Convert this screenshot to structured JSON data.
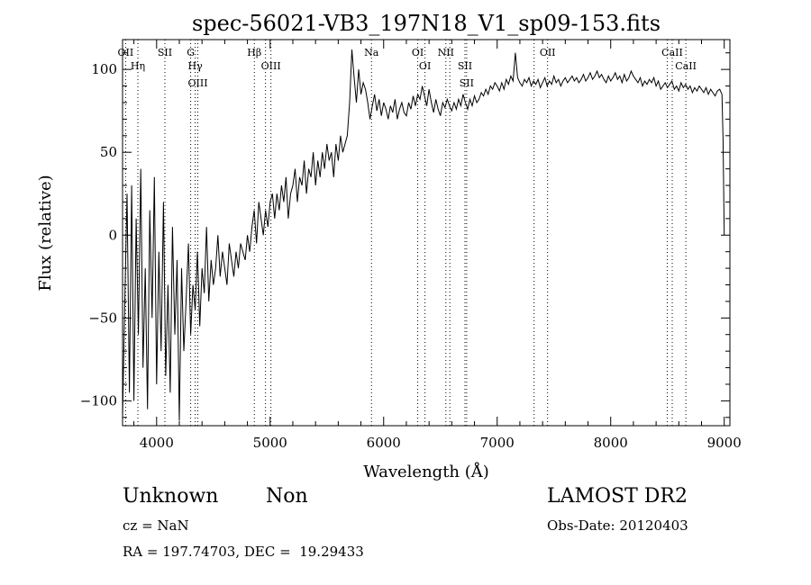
{
  "chart_data": {
    "type": "line",
    "title": "spec-56021-VB3_197N18_V1_sp09-153.fits",
    "xlabel": "Wavelength (Å)",
    "ylabel": "Flux (relative)",
    "xlim": [
      3700,
      9050
    ],
    "ylim": [
      -115,
      118
    ],
    "x_ticks": [
      4000,
      5000,
      6000,
      7000,
      8000,
      9000
    ],
    "y_ticks": [
      -100,
      -50,
      0,
      50,
      100
    ],
    "grid": false,
    "series": [
      {
        "color": "#000000",
        "x": [
          3700,
          3720,
          3740,
          3760,
          3780,
          3800,
          3820,
          3840,
          3860,
          3880,
          3900,
          3920,
          3940,
          3960,
          3980,
          4000,
          4020,
          4040,
          4060,
          4080,
          4100,
          4120,
          4140,
          4160,
          4180,
          4200,
          4220,
          4240,
          4260,
          4280,
          4300,
          4320,
          4340,
          4360,
          4380,
          4400,
          4420,
          4440,
          4460,
          4480,
          4500,
          4520,
          4540,
          4560,
          4580,
          4600,
          4620,
          4640,
          4660,
          4680,
          4700,
          4720,
          4740,
          4760,
          4780,
          4800,
          4820,
          4840,
          4860,
          4880,
          4900,
          4920,
          4940,
          4960,
          4980,
          5000,
          5020,
          5040,
          5060,
          5080,
          5100,
          5120,
          5140,
          5160,
          5180,
          5200,
          5220,
          5240,
          5260,
          5280,
          5300,
          5320,
          5340,
          5360,
          5380,
          5400,
          5420,
          5440,
          5460,
          5480,
          5500,
          5520,
          5540,
          5560,
          5580,
          5600,
          5620,
          5640,
          5660,
          5680,
          5700,
          5720,
          5740,
          5760,
          5780,
          5800,
          5820,
          5840,
          5860,
          5880,
          5900,
          5920,
          5940,
          5960,
          5980,
          6000,
          6020,
          6040,
          6060,
          6080,
          6100,
          6120,
          6140,
          6160,
          6180,
          6200,
          6220,
          6240,
          6260,
          6280,
          6300,
          6320,
          6340,
          6360,
          6380,
          6400,
          6420,
          6440,
          6460,
          6480,
          6500,
          6520,
          6540,
          6560,
          6580,
          6600,
          6620,
          6640,
          6660,
          6680,
          6700,
          6720,
          6740,
          6760,
          6780,
          6800,
          6820,
          6840,
          6860,
          6880,
          6900,
          6920,
          6940,
          6960,
          6980,
          7000,
          7020,
          7040,
          7060,
          7080,
          7100,
          7120,
          7140,
          7160,
          7180,
          7200,
          7220,
          7240,
          7260,
          7280,
          7300,
          7320,
          7340,
          7360,
          7380,
          7400,
          7420,
          7440,
          7460,
          7480,
          7500,
          7520,
          7540,
          7560,
          7580,
          7600,
          7620,
          7640,
          7660,
          7680,
          7700,
          7720,
          7740,
          7760,
          7780,
          7800,
          7820,
          7840,
          7860,
          7880,
          7900,
          7920,
          7940,
          7960,
          7980,
          8000,
          8020,
          8040,
          8060,
          8080,
          8100,
          8120,
          8140,
          8160,
          8180,
          8200,
          8220,
          8240,
          8260,
          8280,
          8300,
          8320,
          8340,
          8360,
          8380,
          8400,
          8420,
          8440,
          8460,
          8480,
          8500,
          8520,
          8540,
          8560,
          8580,
          8600,
          8620,
          8640,
          8660,
          8680,
          8700,
          8720,
          8740,
          8760,
          8780,
          8800,
          8820,
          8840,
          8860,
          8880,
          8900,
          8920,
          8940,
          8960,
          8980,
          8990,
          9000
        ],
        "y": [
          -110,
          -40,
          25,
          -95,
          30,
          -100,
          10,
          -60,
          40,
          -80,
          -20,
          -105,
          15,
          -50,
          35,
          -90,
          -10,
          -70,
          20,
          -85,
          -30,
          -95,
          5,
          -60,
          -15,
          -112,
          -20,
          -70,
          -40,
          -5,
          -60,
          -30,
          -45,
          -10,
          -55,
          -20,
          -35,
          5,
          -40,
          -15,
          -30,
          -20,
          0,
          -25,
          -10,
          -20,
          -30,
          -5,
          -15,
          -25,
          -10,
          -20,
          -5,
          -10,
          -15,
          0,
          -10,
          5,
          15,
          -5,
          20,
          10,
          0,
          15,
          5,
          20,
          25,
          10,
          25,
          15,
          30,
          20,
          35,
          10,
          25,
          30,
          40,
          20,
          35,
          30,
          45,
          25,
          40,
          35,
          50,
          30,
          45,
          35,
          50,
          40,
          55,
          45,
          50,
          35,
          55,
          45,
          60,
          50,
          55,
          60,
          80,
          112,
          95,
          80,
          100,
          85,
          92,
          88,
          80,
          70,
          78,
          85,
          75,
          82,
          72,
          80,
          76,
          70,
          78,
          74,
          82,
          70,
          76,
          80,
          74,
          72,
          80,
          76,
          84,
          78,
          85,
          82,
          90,
          84,
          78,
          88,
          80,
          74,
          82,
          76,
          72,
          80,
          77,
          82,
          78,
          75,
          80,
          76,
          82,
          78,
          85,
          80,
          76,
          82,
          78,
          84,
          80,
          82,
          86,
          84,
          88,
          85,
          90,
          88,
          92,
          90,
          87,
          92,
          88,
          94,
          91,
          96,
          93,
          110,
          95,
          92,
          90,
          94,
          92,
          95,
          90,
          93,
          91,
          94,
          89,
          92,
          95,
          90,
          93,
          91,
          96,
          92,
          94,
          90,
          93,
          95,
          92,
          94,
          96,
          93,
          95,
          92,
          94,
          97,
          93,
          95,
          98,
          94,
          96,
          99,
          95,
          97,
          94,
          92,
          96,
          93,
          95,
          98,
          94,
          96,
          92,
          97,
          93,
          95,
          99,
          96,
          94,
          92,
          95,
          90,
          93,
          91,
          94,
          92,
          95,
          90,
          93,
          88,
          90,
          92,
          89,
          91,
          93,
          88,
          90,
          87,
          92,
          89,
          91,
          88,
          90,
          86,
          89,
          87,
          90,
          88,
          86,
          89,
          85,
          88,
          86,
          84,
          87,
          88,
          85,
          58,
          0
        ]
      }
    ],
    "line_marks": [
      {
        "x": 3727,
        "label": "OII"
      },
      {
        "x": 3835,
        "label": "Hη"
      },
      {
        "x": 4073,
        "label": "SII"
      },
      {
        "x": 4300,
        "label": "G"
      },
      {
        "x": 4340,
        "label": "Hγ"
      },
      {
        "x": 4363,
        "label": "OIII"
      },
      {
        "x": 4861,
        "label": "Hβ"
      },
      {
        "x": 4959,
        "label": ""
      },
      {
        "x": 5007,
        "label": "OIII"
      },
      {
        "x": 5893,
        "label": "Na"
      },
      {
        "x": 6300,
        "label": "OI"
      },
      {
        "x": 6364,
        "label": "OI"
      },
      {
        "x": 6548,
        "label": "NII"
      },
      {
        "x": 6583,
        "label": ""
      },
      {
        "x": 6716,
        "label": "SII"
      },
      {
        "x": 6731,
        "label": "SII"
      },
      {
        "x": 7325,
        "label": ""
      },
      {
        "x": 7444,
        "label": "OII"
      },
      {
        "x": 8498,
        "label": ""
      },
      {
        "x": 8542,
        "label": "CaII"
      },
      {
        "x": 8662,
        "label": "CaII"
      }
    ]
  },
  "info": {
    "object_class": "Unknown",
    "subclass": "Non",
    "survey": "LAMOST DR2",
    "cz": "cz = NaN",
    "obs_date": "Obs-Date: 20120403",
    "coords": "RA = 197.74703, DEC =  19.29433"
  }
}
